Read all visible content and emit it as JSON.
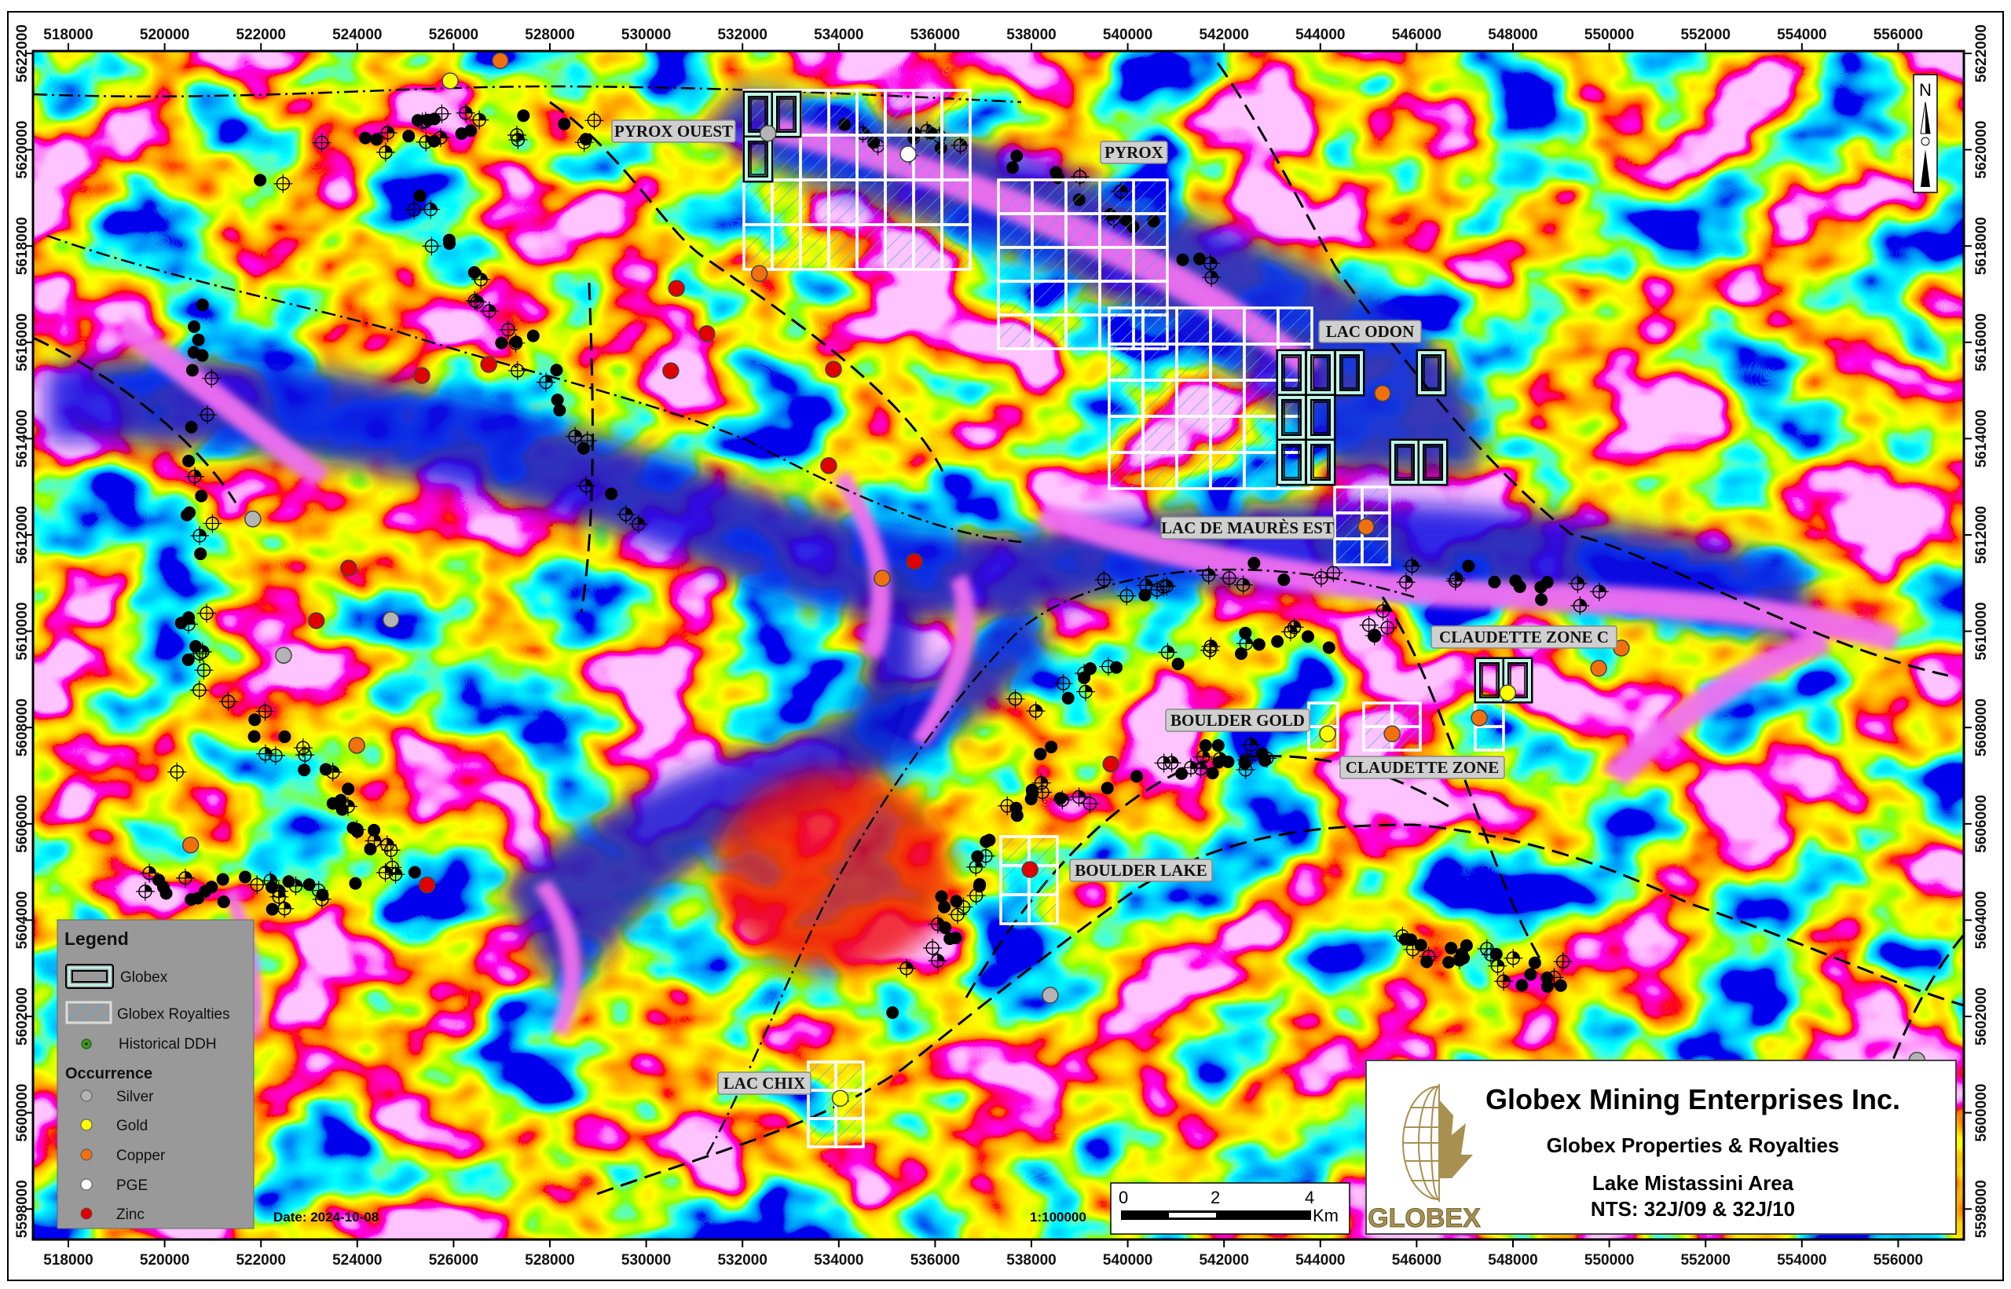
{
  "map": {
    "x_ticks": [
      518000,
      520000,
      522000,
      524000,
      526000,
      528000,
      530000,
      532000,
      534000,
      536000,
      538000,
      540000,
      542000,
      544000,
      546000,
      548000,
      550000,
      552000,
      554000,
      556000
    ],
    "y_ticks": [
      5598000,
      5600000,
      5602000,
      5604000,
      5606000,
      5608000,
      5610000,
      5612000,
      5614000,
      5616000,
      5618000,
      5620000,
      5622000
    ],
    "north_label": "N",
    "date_label": "Date: 2024-10-08",
    "scale_ratio": "1:100000",
    "scale_bar": {
      "t0": "0",
      "t2": "2",
      "t4": "4",
      "unit": "Km"
    },
    "colors": {
      "silver": "#b4b4b4",
      "gold": "#ffff00",
      "copper": "#f07010",
      "pge": "#ffffff",
      "zinc": "#e00000",
      "royalty_outline": "#ffffff",
      "globex_inner": "#bff5e6"
    }
  },
  "property_labels": [
    {
      "id": "pyrox-ouest",
      "text": "PYROX OUEST"
    },
    {
      "id": "pyrox",
      "text": "PYROX"
    },
    {
      "id": "lac-odon",
      "text": "LAC ODON"
    },
    {
      "id": "lac-de-maures-est",
      "text": "LAC DE MAURÈS EST"
    },
    {
      "id": "claudette-zone-c",
      "text": "CLAUDETTE ZONE C"
    },
    {
      "id": "boulder-gold",
      "text": "BOULDER GOLD"
    },
    {
      "id": "claudette-zone",
      "text": "CLAUDETTE ZONE"
    },
    {
      "id": "boulder-lake",
      "text": "BOULDER LAKE"
    },
    {
      "id": "lac-chix",
      "text": "LAC CHIX"
    }
  ],
  "occurrences": [
    {
      "type": "gold",
      "e": 525930,
      "n": 5621430
    },
    {
      "type": "copper",
      "e": 526970,
      "n": 5621850
    },
    {
      "type": "silver",
      "e": 532530,
      "n": 5620340
    },
    {
      "type": "pge",
      "e": 535440,
      "n": 5619910
    },
    {
      "type": "copper",
      "e": 532350,
      "n": 5617430
    },
    {
      "type": "zinc",
      "e": 530630,
      "n": 5617120
    },
    {
      "type": "zinc",
      "e": 531260,
      "n": 5616180
    },
    {
      "type": "zinc",
      "e": 530510,
      "n": 5615410
    },
    {
      "type": "zinc",
      "e": 526730,
      "n": 5615540
    },
    {
      "type": "zinc",
      "e": 525340,
      "n": 5615310
    },
    {
      "type": "zinc",
      "e": 533890,
      "n": 5615440
    },
    {
      "type": "zinc",
      "e": 533790,
      "n": 5613440
    },
    {
      "type": "copper",
      "e": 545290,
      "n": 5614940
    },
    {
      "type": "copper",
      "e": 544950,
      "n": 5612170
    },
    {
      "type": "silver",
      "e": 521830,
      "n": 5612330
    },
    {
      "type": "zinc",
      "e": 523820,
      "n": 5611310
    },
    {
      "type": "copper",
      "e": 534900,
      "n": 5611100
    },
    {
      "type": "zinc",
      "e": 535570,
      "n": 5611450
    },
    {
      "type": "zinc",
      "e": 523150,
      "n": 5610220
    },
    {
      "type": "silver",
      "e": 524700,
      "n": 5610240
    },
    {
      "type": "silver",
      "e": 522470,
      "n": 5609500
    },
    {
      "type": "copper",
      "e": 523990,
      "n": 5607630
    },
    {
      "type": "copper",
      "e": 520540,
      "n": 5605560
    },
    {
      "type": "zinc",
      "e": 525450,
      "n": 5604730
    },
    {
      "type": "zinc",
      "e": 537970,
      "n": 5605050
    },
    {
      "type": "zinc",
      "e": 539650,
      "n": 5607240
    },
    {
      "type": "silver",
      "e": 538390,
      "n": 5602440
    },
    {
      "type": "gold",
      "e": 534030,
      "n": 5600300
    },
    {
      "type": "gold",
      "e": 544150,
      "n": 5607870
    },
    {
      "type": "copper",
      "e": 545490,
      "n": 5607870
    },
    {
      "type": "copper",
      "e": 547300,
      "n": 5608200
    },
    {
      "type": "gold",
      "e": 547890,
      "n": 5608720
    },
    {
      "type": "copper",
      "e": 549780,
      "n": 5609230
    },
    {
      "type": "copper",
      "e": 550250,
      "n": 5609650
    },
    {
      "type": "silver",
      "e": 556390,
      "n": 5601090
    }
  ],
  "legend": {
    "title": "Legend",
    "globex": "Globex",
    "royalties": "Globex Royalties",
    "ddh": "Historical DDH",
    "occurrence_title": "Occurrence",
    "silver": "Silver",
    "gold": "Gold",
    "copper": "Copper",
    "pge": "PGE",
    "zinc": "Zinc"
  },
  "title_block": {
    "logo_text": "GLOBEX",
    "company": "Globex Mining Enterprises Inc.",
    "subtitle": "Globex Properties & Royalties",
    "area": "Lake Mistassini Area",
    "nts": "NTS: 32J/09 & 32J/10"
  }
}
